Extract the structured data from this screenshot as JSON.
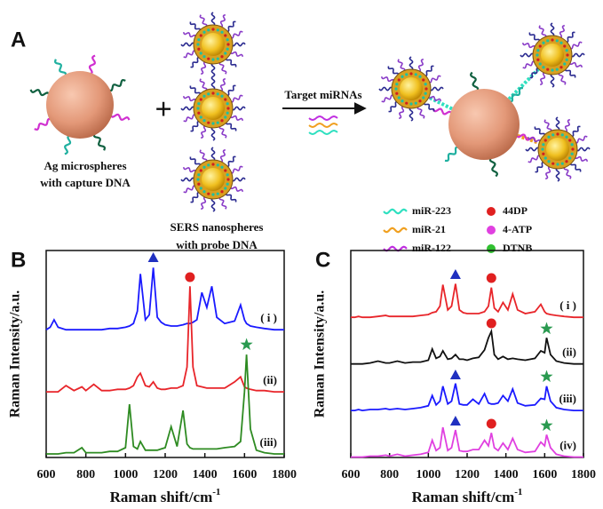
{
  "panel_a": {
    "label": "A",
    "left_caption": [
      "Ag microspheres",
      "with capture DNA"
    ],
    "middle_caption": [
      "SERS nanospheres",
      "with probe DNA"
    ],
    "arrow_label": "Target miRNAs",
    "legend": [
      {
        "label": "miR-223",
        "color": "#2fe0c0"
      },
      {
        "label": "miR-21",
        "color": "#f0a020"
      },
      {
        "label": "miR-122",
        "color": "#c030e0"
      },
      {
        "label": "44DP",
        "color": "#e02020"
      },
      {
        "label": "4-ATP",
        "color": "#e040e0"
      },
      {
        "label": "DTNB",
        "color": "#30c030"
      }
    ]
  },
  "chart_data": [
    {
      "type": "line",
      "panel_label": "B",
      "ylabel": "Raman Intensity/a.u.",
      "xlabel": "Raman shift/cm",
      "xlabel_superscript": "-1",
      "xlim": [
        600,
        1800
      ],
      "xticks": [
        600,
        800,
        1000,
        1200,
        1400,
        1600,
        1800
      ],
      "ylim": [
        0,
        10
      ],
      "x": [
        600,
        620,
        640,
        660,
        700,
        740,
        780,
        800,
        840,
        880,
        920,
        960,
        1000,
        1020,
        1040,
        1060,
        1075,
        1100,
        1120,
        1140,
        1160,
        1180,
        1200,
        1230,
        1260,
        1290,
        1310,
        1325,
        1340,
        1360,
        1385,
        1410,
        1435,
        1460,
        1500,
        1550,
        1580,
        1600,
        1610,
        1630,
        1660,
        1700,
        1750,
        1800
      ],
      "series": [
        {
          "name": "( i )",
          "color": "#1a1aff",
          "values": [
            1,
            1.2,
            1.8,
            1.2,
            1,
            1,
            1,
            1,
            1,
            1,
            1.1,
            1.1,
            1.2,
            1.3,
            1.5,
            2.5,
            5.5,
            1.8,
            2.2,
            6,
            2,
            1.6,
            1.4,
            1.3,
            1.3,
            1.4,
            1.5,
            1.5,
            1.6,
            1.8,
            4,
            2.8,
            4.5,
            2,
            1.5,
            1.7,
            3,
            1.8,
            1.5,
            1.3,
            1.2,
            1.1,
            1,
            1
          ]
        },
        {
          "name": "(ii)",
          "color": "#e8252a",
          "values": [
            1,
            1,
            1,
            1,
            1.5,
            1.1,
            1.4,
            1.1,
            1.6,
            1.1,
            1.1,
            1.2,
            1.2,
            1.3,
            1.5,
            2.2,
            2.5,
            1.5,
            1.4,
            1.8,
            1.3,
            1.2,
            1.2,
            1.3,
            1.3,
            1.5,
            3,
            9.5,
            3,
            1.5,
            1.4,
            1.3,
            1.3,
            1.3,
            1.3,
            1.8,
            2.2,
            1.4,
            1.3,
            1.2,
            1.1,
            1.1,
            1,
            1
          ]
        },
        {
          "name": "(iii)",
          "color": "#2e8b22",
          "values": [
            1,
            1,
            1,
            1,
            1.1,
            1.1,
            1.5,
            1.1,
            1.1,
            1.1,
            1.2,
            1.2,
            1.5,
            5,
            1.6,
            1.4,
            2,
            1.3,
            1.3,
            1.3,
            1.3,
            1.4,
            1.5,
            3.2,
            1.6,
            4.5,
            1.8,
            1.5,
            1.4,
            1.4,
            1.4,
            1.4,
            1.4,
            1.4,
            1.5,
            1.6,
            2,
            6,
            9,
            3,
            1.3,
            1.1,
            1,
            1
          ]
        }
      ]
    },
    {
      "type": "line",
      "panel_label": "C",
      "ylabel": "Raman Intensity/a.u.",
      "xlabel": "Raman shift/cm",
      "xlabel_superscript": "-1",
      "xlim": [
        600,
        1800
      ],
      "xticks": [
        600,
        800,
        1000,
        1200,
        1400,
        1600,
        1800
      ],
      "ylim": [
        0,
        10
      ],
      "x": [
        600,
        620,
        640,
        660,
        700,
        740,
        780,
        800,
        840,
        880,
        920,
        960,
        1000,
        1020,
        1040,
        1060,
        1075,
        1100,
        1120,
        1140,
        1160,
        1180,
        1200,
        1230,
        1260,
        1290,
        1310,
        1325,
        1340,
        1360,
        1385,
        1410,
        1435,
        1460,
        1500,
        1550,
        1580,
        1600,
        1610,
        1630,
        1660,
        1700,
        1750,
        1800
      ],
      "series": [
        {
          "name": "( i )",
          "color": "#e8252a",
          "values": [
            1,
            1,
            1.1,
            1,
            1,
            1.1,
            1.2,
            1.1,
            1.1,
            1.1,
            1.1,
            1.2,
            1.3,
            1.5,
            1.6,
            2.2,
            4.5,
            1.8,
            2.2,
            4.6,
            1.8,
            1.5,
            1.4,
            1.4,
            1.4,
            1.6,
            2.2,
            4.2,
            2,
            1.6,
            2.6,
            1.8,
            3.5,
            1.8,
            1.4,
            1.6,
            2.4,
            1.6,
            1.4,
            1.3,
            1.2,
            1.1,
            1,
            1
          ]
        },
        {
          "name": "(ii)",
          "color": "#111111",
          "values": [
            1,
            1,
            1,
            1,
            1.1,
            1.3,
            1.1,
            1.1,
            1.3,
            1.1,
            1.2,
            1.2,
            1.4,
            2.6,
            1.6,
            1.8,
            2.4,
            1.5,
            1.6,
            2,
            1.5,
            1.5,
            1.4,
            1.6,
            1.7,
            2.5,
            3.8,
            4.5,
            2,
            1.5,
            1.8,
            1.5,
            1.6,
            1.5,
            1.4,
            1.6,
            2.4,
            2.2,
            3.8,
            2,
            1.3,
            1.1,
            1,
            1
          ]
        },
        {
          "name": "(iii)",
          "color": "#1a1aff",
          "values": [
            1,
            1,
            1.1,
            1,
            1.1,
            1.1,
            1.2,
            1.1,
            1.2,
            1.1,
            1.2,
            1.3,
            1.5,
            2.6,
            1.6,
            2,
            3.6,
            1.7,
            2,
            3.9,
            1.7,
            1.6,
            1.6,
            2.2,
            1.7,
            2.8,
            1.8,
            1.7,
            1.7,
            1.8,
            2.6,
            2,
            3.3,
            1.8,
            1.5,
            1.6,
            2.3,
            2.2,
            3.6,
            2,
            1.3,
            1.1,
            1,
            1
          ]
        },
        {
          "name": "(iv)",
          "color": "#e040e0",
          "values": [
            1,
            1,
            1,
            1,
            1.1,
            1.1,
            1.2,
            1.1,
            1.3,
            1.1,
            1.2,
            1.3,
            1.5,
            2.8,
            1.7,
            2,
            4.2,
            1.7,
            2,
            3.9,
            1.7,
            1.6,
            1.6,
            1.8,
            1.8,
            2.8,
            2.2,
            3.6,
            2,
            1.7,
            2.5,
            1.8,
            3,
            1.8,
            1.5,
            1.6,
            2.6,
            2.2,
            3.4,
            2,
            1.3,
            1.1,
            1,
            1
          ]
        }
      ]
    }
  ]
}
